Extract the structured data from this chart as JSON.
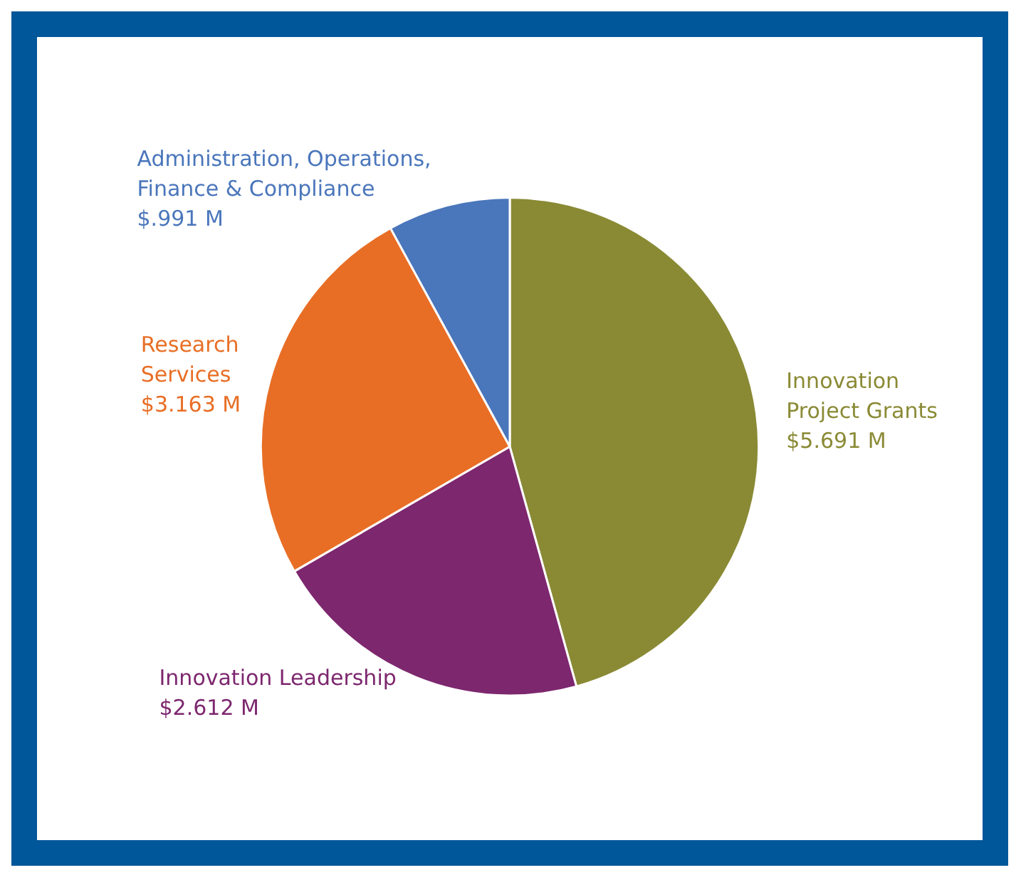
{
  "chart_data": {
    "type": "pie",
    "categories": [
      "Innovation Project Grants",
      "Innovation Leadership",
      "Research Services",
      "Administration, Operations, Finance & Compliance"
    ],
    "values": [
      5.691,
      2.612,
      3.163,
      0.991
    ],
    "value_labels": [
      "$5.691 M",
      "$2.612 M",
      "$3.163 M",
      "$.991 M"
    ],
    "colors": [
      "#8a8a35",
      "#7d276e",
      "#e86e25",
      "#4a76bb"
    ],
    "legend": false
  }
}
